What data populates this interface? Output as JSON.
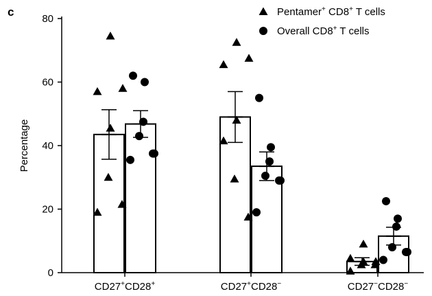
{
  "panel_label": "c",
  "chart_data": {
    "type": "bar",
    "ylabel": "Percentage",
    "ylim": [
      0,
      80
    ],
    "yticks": [
      0,
      20,
      40,
      60,
      80
    ],
    "categories": [
      {
        "base": "CD27",
        "s1": "+",
        "mid": "CD28",
        "s2": "+"
      },
      {
        "base": "CD27",
        "s1": "+",
        "mid": "CD28",
        "s2": "−"
      },
      {
        "base": "CD27",
        "s1": "−",
        "mid": "CD28",
        "s2": "−"
      }
    ],
    "series": [
      {
        "name": {
          "pre": "Pentamer",
          "sup": "+",
          "mid": " CD8",
          "sup2": "+",
          "post": " T cells"
        },
        "marker": "triangle",
        "means": [
          43.5,
          49.0,
          3.5
        ],
        "sem": [
          7.8,
          8.0,
          1.2
        ],
        "points": [
          [
            74.5,
            57.0,
            58.0,
            45.5,
            30.0,
            21.5,
            19.0
          ],
          [
            72.5,
            65.5,
            67.5,
            48.0,
            29.5,
            17.5,
            41.5
          ],
          [
            9.0,
            4.5,
            3.5,
            3.5,
            2.5,
            2.5,
            0.5
          ]
        ]
      },
      {
        "name": {
          "pre": "Overall CD8",
          "sup": "+",
          "mid": "",
          "sup2": "",
          "post": " T cells"
        },
        "marker": "circle",
        "means": [
          46.8,
          33.5,
          11.5
        ],
        "sem": [
          4.2,
          4.5,
          2.8
        ],
        "points": [
          [
            62.0,
            60.0,
            47.5,
            43.0,
            37.5,
            37.5,
            35.5
          ],
          [
            55.0,
            39.5,
            35.0,
            30.5,
            29.0,
            29.0,
            19.0
          ],
          [
            22.5,
            17.0,
            14.5,
            8.0,
            6.5,
            6.5,
            4.0
          ]
        ]
      }
    ],
    "legend_position": "top-right",
    "grid": false
  }
}
